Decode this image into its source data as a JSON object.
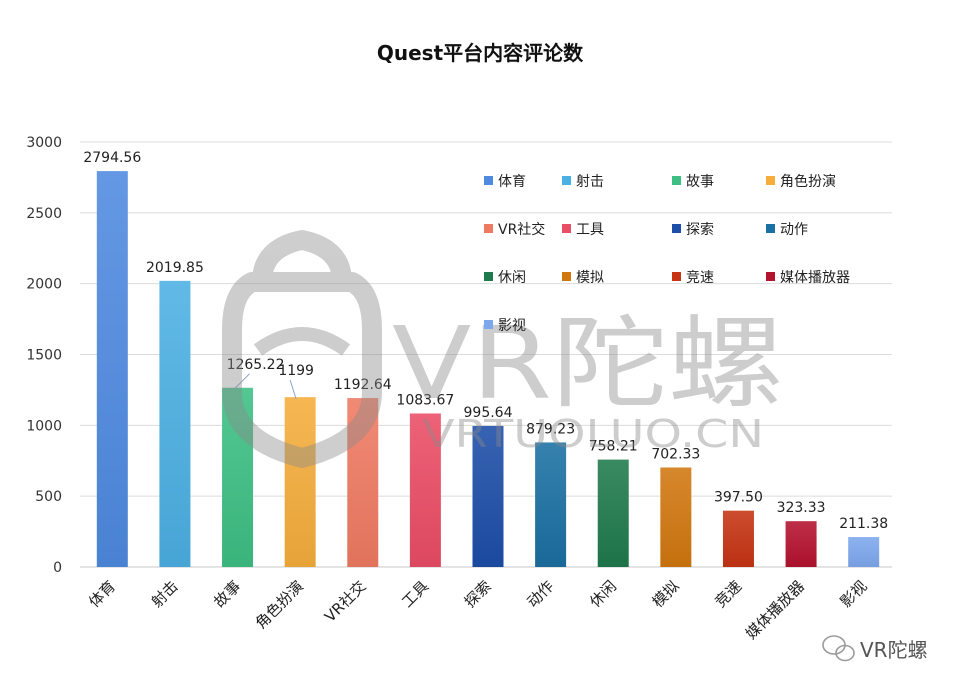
{
  "chart_data": {
    "type": "bar",
    "title": "Quest平台内容评论数",
    "xlabel": "",
    "ylabel": "",
    "ylim": [
      0,
      3000
    ],
    "yticks": [
      0,
      500,
      1000,
      1500,
      2000,
      2500,
      3000
    ],
    "grid": true,
    "legend_position": "top-right",
    "categories": [
      "体育",
      "射击",
      "故事",
      "角色扮演",
      "VR社交",
      "工具",
      "探索",
      "动作",
      "休闲",
      "模拟",
      "竞速",
      "媒体播放器",
      "影视"
    ],
    "values": [
      2794.56,
      2019.85,
      1265.22,
      1199,
      1192.64,
      1083.67,
      995.64,
      879.23,
      758.21,
      702.33,
      397.5,
      323.33,
      211.38
    ],
    "value_labels": [
      "2794.56",
      "2019.85",
      "1265.22",
      "1199",
      "1192.64",
      "1083.67",
      "995.64",
      "879.23",
      "758.21",
      "702.33",
      "397.50",
      "323.33",
      "211.38"
    ],
    "colors": [
      "#4f8ae0",
      "#4bb0e3",
      "#3dbf83",
      "#f5ad3c",
      "#ef7a62",
      "#ea4d66",
      "#1d4ea8",
      "#1b70a3",
      "#1f7a4c",
      "#d1770f",
      "#c63413",
      "#b5122e",
      "#7ea8ee"
    ]
  },
  "watermark": {
    "main": "VR陀螺",
    "domain": "VRTUOLUO.CN"
  },
  "footer": {
    "account": "VR陀螺"
  }
}
